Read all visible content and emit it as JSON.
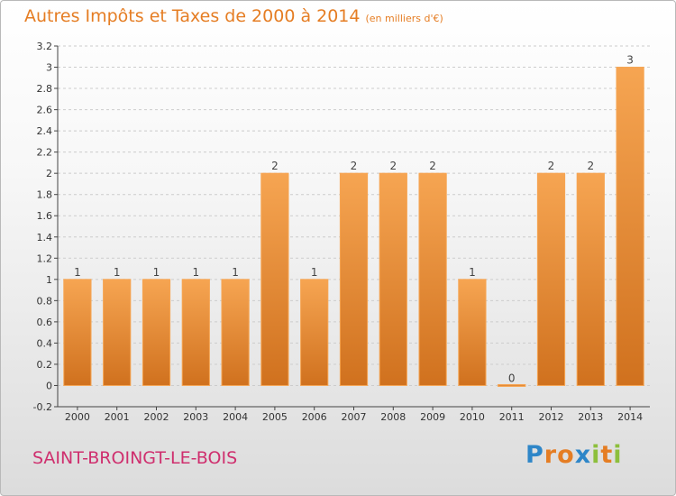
{
  "title": "Autres Impôts et Taxes de 2000 à 2014",
  "subtitle": "(en milliers d'€)",
  "commune": "SAINT-BROINGT-LE-BOIS",
  "logo": {
    "text": "Proxiti",
    "letters": [
      {
        "ch": "P",
        "color": "#2e86c8"
      },
      {
        "ch": "r",
        "color": "#e57d23"
      },
      {
        "ch": "o",
        "color": "#e57d23"
      },
      {
        "ch": "x",
        "color": "#2e86c8"
      },
      {
        "ch": "i",
        "color": "#8dbf3c"
      },
      {
        "ch": "t",
        "color": "#e57d23"
      },
      {
        "ch": "i",
        "color": "#8dbf3c"
      }
    ]
  },
  "colors": {
    "title": "#e57d23",
    "commune": "#cf2f6e",
    "bar_light": "#f6a552",
    "bar_dark": "#d0711e",
    "axis": "#444444",
    "grid": "#cccccc"
  },
  "chart_data": {
    "type": "bar",
    "categories": [
      "2000",
      "2001",
      "2002",
      "2003",
      "2004",
      "2005",
      "2006",
      "2007",
      "2008",
      "2009",
      "2010",
      "2011",
      "2012",
      "2013",
      "2014"
    ],
    "values": [
      1,
      1,
      1,
      1,
      1,
      2,
      1,
      2,
      2,
      2,
      1,
      0,
      2,
      2,
      3
    ],
    "labels": [
      "1",
      "1",
      "1",
      "1",
      "1",
      "2",
      "1",
      "2",
      "2",
      "2",
      "1",
      "0",
      "2",
      "2",
      "3"
    ],
    "ylim": [
      -0.2,
      3.2
    ],
    "yticks": [
      -0.2,
      0,
      0.2,
      0.4,
      0.6,
      0.8,
      1,
      1.2,
      1.4,
      1.6,
      1.8,
      2,
      2.2,
      2.4,
      2.6,
      2.8,
      3,
      3.2
    ],
    "ytick_labels": [
      "-0.2",
      "0",
      "0.2",
      "0.4",
      "0.6",
      "0.8",
      "1",
      "1.2",
      "1.4",
      "1.6",
      "1.8",
      "2",
      "2.2",
      "2.4",
      "2.6",
      "2.8",
      "3",
      "3.2"
    ],
    "grid": "horizontal dashed"
  }
}
